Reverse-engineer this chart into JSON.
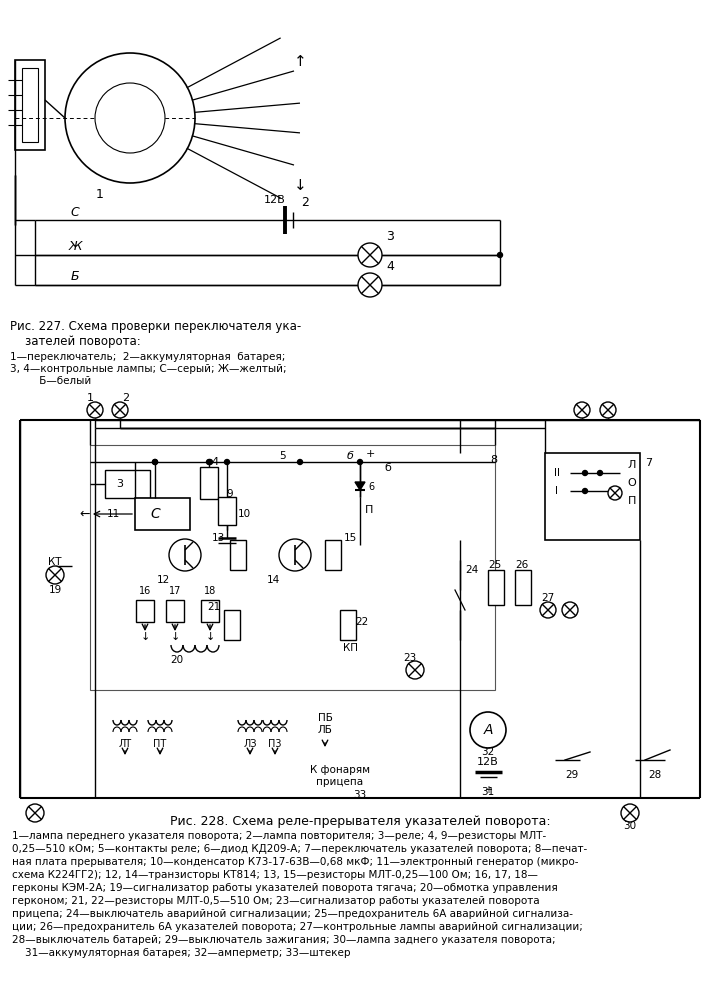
{
  "title1_line1": "Рис. 227. Схема проверки переключателя ука-",
  "title1_line2": "    зателей поворота:",
  "cap1_line1": "1—переключатель;  2—аккумуляторная  батарея;",
  "cap1_line2": "3, 4—контрольные лампы; С—серый; Ж—желтый;",
  "cap1_line3": "         Б—белый",
  "title2": "Рис. 228. Схема реле-прерывателя указателей поворота:",
  "cap2_lines": [
    "1—лампа переднего указателя поворота; 2—лампа повторителя; 3—реле; 4, 9—резисторы МЛТ-",
    "0,25—510 кОм; 5—контакты реле; 6—диод КД209-А; 7—переключатель указателей поворота; 8—печат-",
    "ная плата прерывателя; 10—конденсатор К73-17-63В—0,68 мкФ; 11—электронный генератор (микро-",
    "схема К224ГГ2); 12, 14—транзисторы КТ814; 13, 15—резисторы МЛТ-0,25—100 Ом; 16, 17, 18—",
    "герконы КЭМ-2А; 19—сигнализатор работы указателей поворота тягача; 20—обмотка управления",
    "герконом; 21, 22—резисторы МЛТ-0,5—510 Ом; 23—сигнализатор работы указателей поворота",
    "прицепа; 24—выключатель аварийной сигнализации; 25—предохранитель 6А аварийной сигнализа-",
    "ции; 26—предохранитель 6А указателей поворота; 27—контрольные лампы аварийной сигнализации;",
    "28—выключатель батарей; 29—выключатель зажигания; 30—лампа заднего указателя поворота;",
    "    31—аккумуляторная батарея; 32—амперметр; 33—штекер"
  ],
  "bg_color": "#ffffff",
  "lc": "#000000"
}
